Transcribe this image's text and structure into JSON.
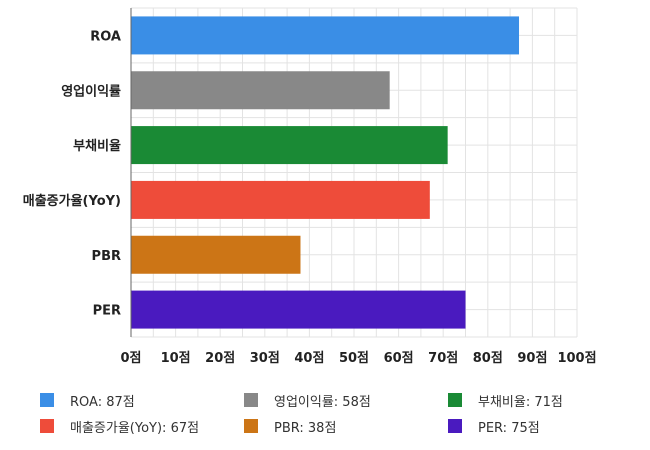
{
  "chart_data": {
    "type": "bar",
    "orientation": "horizontal",
    "categories": [
      "ROA",
      "영업이익률",
      "부채비율",
      "매출증가율(YoY)",
      "PBR",
      "PER"
    ],
    "values": [
      87,
      58,
      71,
      67,
      38,
      75
    ],
    "colors": [
      "#3a8ee6",
      "#888888",
      "#1a8a35",
      "#ee4c3a",
      "#cc7516",
      "#4a1abf"
    ],
    "xlim": [
      0,
      100
    ],
    "xticks": [
      0,
      10,
      20,
      30,
      40,
      50,
      60,
      70,
      80,
      90,
      100
    ],
    "tick_suffix": "점",
    "grid": true,
    "legend_position": "bottom",
    "legend": [
      {
        "label": "ROA: 87점",
        "color": "#3a8ee6"
      },
      {
        "label": "영업이익률: 58점",
        "color": "#888888"
      },
      {
        "label": "부채비율: 71점",
        "color": "#1a8a35"
      },
      {
        "label": "매출증가율(YoY): 67점",
        "color": "#ee4c3a"
      },
      {
        "label": "PBR: 38점",
        "color": "#cc7516"
      },
      {
        "label": "PER: 75점",
        "color": "#4a1abf"
      }
    ]
  }
}
